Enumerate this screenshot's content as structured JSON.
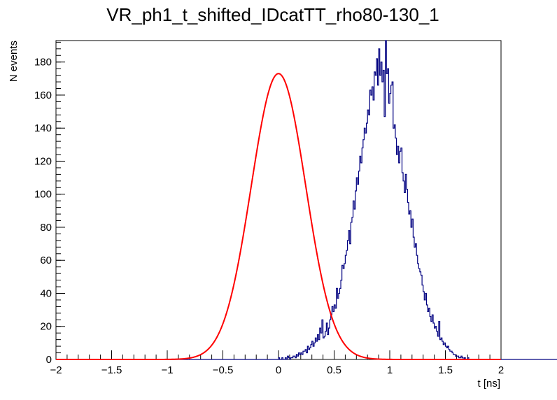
{
  "chart_data": {
    "type": "histogram",
    "title": "VR_ph1_t_shifted_IDcatTT_rho80-130_1",
    "xlabel": "t [ns]",
    "ylabel": "N events",
    "xlim": [
      -2,
      2
    ],
    "ylim": [
      0,
      193
    ],
    "x_ticks": [
      -2,
      -1.5,
      -1,
      -0.5,
      0,
      0.5,
      1,
      1.5,
      2
    ],
    "x_tick_labels": [
      "−2",
      "−1.5",
      "−1",
      "−0.5",
      "0",
      "0.5",
      "1",
      "1.5",
      "2"
    ],
    "y_ticks": [
      0,
      20,
      40,
      60,
      80,
      100,
      120,
      140,
      160,
      180
    ],
    "y_tick_labels": [
      "0",
      "20",
      "40",
      "60",
      "80",
      "100",
      "120",
      "140",
      "160",
      "180"
    ],
    "histogram": {
      "name": "data",
      "color": "#000080",
      "bin_low": -2.0,
      "bin_width": 0.01,
      "counts": [
        0,
        0,
        0,
        0,
        0,
        0,
        0,
        0,
        0,
        0,
        0,
        0,
        0,
        0,
        0,
        0,
        0,
        0,
        0,
        0,
        0,
        0,
        0,
        0,
        0,
        0,
        0,
        0,
        0,
        0,
        0,
        0,
        0,
        0,
        0,
        0,
        0,
        0,
        0,
        0,
        0,
        0,
        0,
        0,
        0,
        0,
        0,
        0,
        0,
        0,
        0,
        0,
        0,
        0,
        0,
        0,
        0,
        0,
        0,
        0,
        0,
        0,
        0,
        0,
        0,
        0,
        0,
        0,
        0,
        0,
        0,
        0,
        0,
        0,
        0,
        0,
        0,
        0,
        0,
        0,
        0,
        0,
        0,
        0,
        0,
        0,
        0,
        0,
        0,
        0,
        0,
        0,
        0,
        0,
        0,
        0,
        0,
        0,
        0,
        0,
        0,
        0,
        0,
        0,
        0,
        0,
        0,
        0,
        0,
        0,
        0,
        0,
        0,
        0,
        0,
        0,
        0,
        0,
        0,
        0,
        0,
        0,
        0,
        0,
        0,
        0,
        0,
        0,
        0,
        0,
        0,
        0,
        0,
        0,
        0,
        0,
        0,
        0,
        0,
        0,
        0,
        0,
        0,
        0,
        0,
        0,
        0,
        0,
        0,
        0,
        0,
        0,
        0,
        0,
        0,
        0,
        0,
        0,
        0,
        0,
        0,
        0,
        0,
        0,
        0,
        0,
        0,
        0,
        0,
        0,
        0,
        0,
        0,
        0,
        0,
        0,
        0,
        0,
        0,
        0,
        0,
        0,
        0,
        0,
        0,
        0,
        0,
        0,
        0,
        0,
        0,
        0,
        0,
        0,
        0,
        0,
        0,
        0,
        0,
        0,
        1,
        0,
        0,
        1,
        0,
        0,
        1,
        0,
        2,
        1,
        0,
        1,
        1,
        2,
        2,
        1,
        3,
        2,
        4,
        3,
        4,
        3,
        5,
        5,
        6,
        4,
        8,
        6,
        7,
        9,
        11,
        8,
        10,
        13,
        11,
        15,
        12,
        19,
        16,
        24,
        13,
        14,
        17,
        22,
        15,
        19,
        24,
        27,
        32,
        29,
        33,
        31,
        43,
        37,
        40,
        43,
        48,
        57,
        55,
        58,
        63,
        66,
        72,
        78,
        70,
        83,
        86,
        96,
        91,
        102,
        110,
        106,
        114,
        123,
        119,
        128,
        133,
        140,
        137,
        143,
        151,
        148,
        163,
        160,
        165,
        157,
        174,
        172,
        182,
        166,
        188,
        172,
        180,
        168,
        175,
        147,
        193,
        173,
        176,
        155,
        161,
        166,
        168,
        140,
        142,
        134,
        124,
        129,
        119,
        126,
        128,
        113,
        108,
        101,
        112,
        103,
        95,
        88,
        90,
        80,
        85,
        74,
        68,
        70,
        63,
        58,
        55,
        53,
        51,
        45,
        41,
        36,
        40,
        33,
        29,
        31,
        26,
        23,
        27,
        22,
        19,
        20,
        17,
        14,
        23,
        12,
        13,
        11,
        9,
        10,
        8,
        7,
        8,
        6,
        5,
        5,
        4,
        3,
        3,
        2,
        2,
        2,
        1,
        1,
        2,
        1,
        0,
        1,
        0,
        0,
        1,
        0,
        0,
        0,
        0,
        0,
        0,
        0,
        0,
        0,
        0,
        0,
        0,
        0,
        0,
        0,
        0,
        0,
        0,
        0,
        0,
        0,
        0,
        0,
        0,
        0,
        0,
        0,
        0,
        0,
        0,
        0,
        0,
        0,
        0,
        0,
        0,
        0,
        0,
        0,
        0,
        0,
        0,
        0,
        0,
        0,
        0,
        0,
        0,
        0,
        0,
        0,
        0,
        0,
        0,
        0,
        0,
        0,
        0,
        0,
        0,
        0,
        0,
        0,
        0,
        0,
        0,
        0,
        0,
        0,
        0,
        0,
        0,
        0,
        0,
        0,
        0,
        0,
        0,
        0,
        0,
        0,
        0,
        0,
        0,
        0,
        0,
        0,
        0,
        0,
        0,
        0,
        0,
        0,
        0,
        0,
        0,
        0,
        0,
        0,
        0,
        0,
        0,
        0,
        0,
        0,
        0,
        0,
        0,
        0,
        0,
        0,
        0,
        0,
        0,
        0,
        0,
        0,
        0,
        0
      ]
    },
    "fit": {
      "name": "gaussian-fit",
      "color": "#ff0000",
      "function": "gaus",
      "amplitude": 173,
      "mean": 0.0,
      "sigma": 0.245
    },
    "grid": false,
    "legend": "none"
  }
}
